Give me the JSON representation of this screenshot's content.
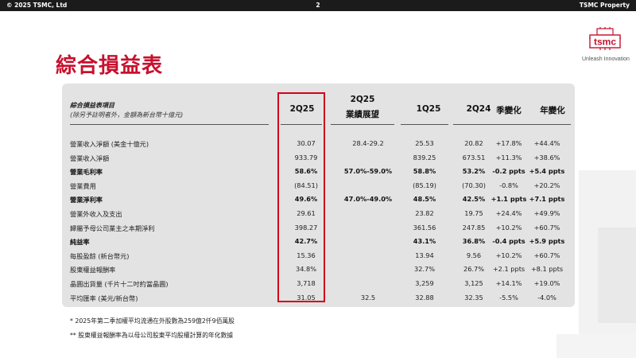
{
  "topbar": {
    "left": "© 2025 TSMC, Ltd",
    "page": "2",
    "right": "TSMC Property"
  },
  "brand": {
    "logo_text": "tsmc",
    "tagline": "Unleash Innovation",
    "accent": "#c8102e"
  },
  "title": "綜合損益表",
  "table": {
    "header_item": "綜合損益表項目",
    "header_note": "(除另予註明者外，金額為新台幣十億元)",
    "columns": [
      "2Q25",
      "2Q25\n業績展望",
      "1Q25",
      "2Q24",
      "季變化",
      "年變化"
    ],
    "column_line1": [
      "2Q25",
      "2Q25",
      "1Q25",
      "2Q24",
      "季變化",
      "年變化"
    ],
    "column_line2": [
      "",
      "業績展望",
      "",
      "",
      "",
      ""
    ],
    "rows": [
      {
        "label": "營業收入淨額 (美金十億元)",
        "bold": false,
        "values": [
          "30.07",
          "28.4-29.2",
          "25.53",
          "20.82",
          "+17.8%",
          "+44.4%"
        ]
      },
      {
        "label": "營業收入淨額",
        "bold": false,
        "values": [
          "933.79",
          "",
          "839.25",
          "673.51",
          "+11.3%",
          "+38.6%"
        ]
      },
      {
        "label": "營業毛利率",
        "bold": true,
        "values": [
          "58.6%",
          "57.0%-59.0%",
          "58.8%",
          "53.2%",
          "-0.2 ppts",
          "+5.4 ppts"
        ]
      },
      {
        "label": "營業費用",
        "bold": false,
        "values": [
          "(84.51)",
          "",
          "(85.19)",
          "(70.30)",
          "-0.8%",
          "+20.2%"
        ]
      },
      {
        "label": "營業淨利率",
        "bold": true,
        "values": [
          "49.6%",
          "47.0%-49.0%",
          "48.5%",
          "42.5%",
          "+1.1 ppts",
          "+7.1 ppts"
        ]
      },
      {
        "label": "營業外收入及支出",
        "bold": false,
        "values": [
          "29.61",
          "",
          "23.82",
          "19.75",
          "+24.4%",
          "+49.9%"
        ]
      },
      {
        "label": "歸屬予母公司業主之本期淨利",
        "bold": false,
        "values": [
          "398.27",
          "",
          "361.56",
          "247.85",
          "+10.2%",
          "+60.7%"
        ]
      },
      {
        "label": "純益率",
        "bold": true,
        "values": [
          "42.7%",
          "",
          "43.1%",
          "36.8%",
          "-0.4 ppts",
          "+5.9 ppts"
        ]
      },
      {
        "label": "每股盈餘 (新台幣元)",
        "bold": false,
        "values": [
          "15.36",
          "",
          "13.94",
          "9.56",
          "+10.2%",
          "+60.7%"
        ]
      },
      {
        "label": "股東權益報酬率",
        "bold": false,
        "values": [
          "34.8%",
          "",
          "32.7%",
          "26.7%",
          "+2.1 ppts",
          "+8.1 ppts"
        ]
      },
      {
        "label": "晶圓出貨量 (千片十二吋約當晶圓)",
        "bold": false,
        "values": [
          "3,718",
          "",
          "3,259",
          "3,125",
          "+14.1%",
          "+19.0%"
        ]
      },
      {
        "label": "平均匯率 (美元/新台幣)",
        "bold": false,
        "values": [
          "31.05",
          "32.5",
          "32.88",
          "32.35",
          "-5.5%",
          "-4.0%"
        ]
      }
    ]
  },
  "footnotes": [
    "*   2025年第二季加權平均流通在外股數為259億2仟9佰萬股",
    "**  股東權益報酬率為以母公司股東平均股權計算的年化數據"
  ]
}
